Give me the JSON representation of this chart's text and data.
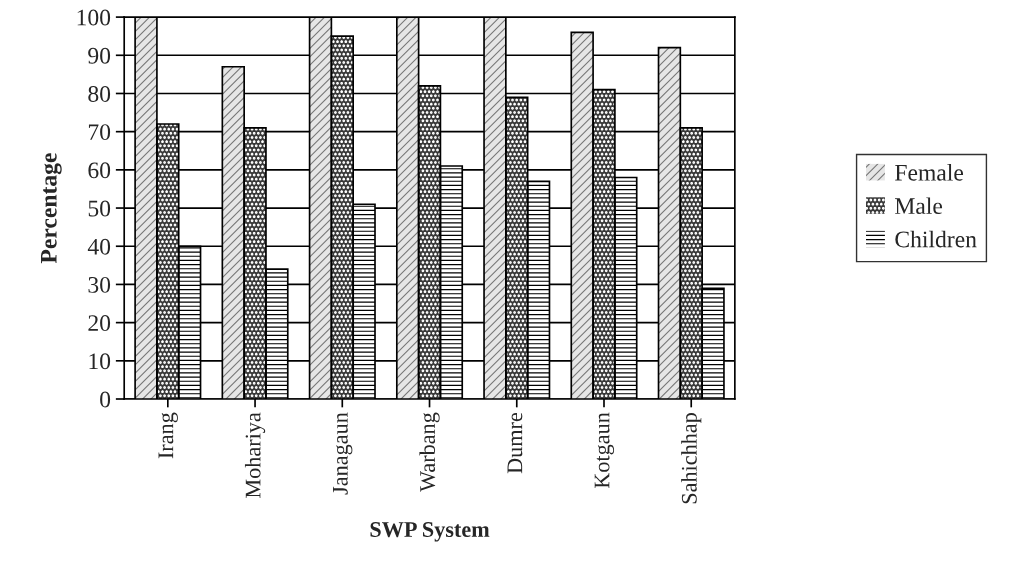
{
  "chart_data": {
    "type": "bar",
    "xlabel": "SWP System",
    "ylabel": "Percentage",
    "categories": [
      "Irang",
      "Mohariya",
      "Janagaun",
      "Warbang",
      "Dumre",
      "Kotgaun",
      "Sahichhap"
    ],
    "series": [
      {
        "name": "Female",
        "color": "#e6e6e6",
        "values": [
          100,
          87,
          100,
          100,
          100,
          96,
          92
        ]
      },
      {
        "name": "Male",
        "color": "#3a3a3a",
        "values": [
          72,
          71,
          95,
          82,
          79,
          81,
          71
        ]
      },
      {
        "name": "Children",
        "color": "#ffffff",
        "values": [
          40,
          34,
          51,
          61,
          57,
          58,
          29
        ]
      }
    ],
    "ylim": [
      0,
      100
    ],
    "yticks": [
      0,
      10,
      20,
      30,
      40,
      50,
      60,
      70,
      80,
      90,
      100
    ],
    "grid": "y",
    "legend": "right"
  }
}
